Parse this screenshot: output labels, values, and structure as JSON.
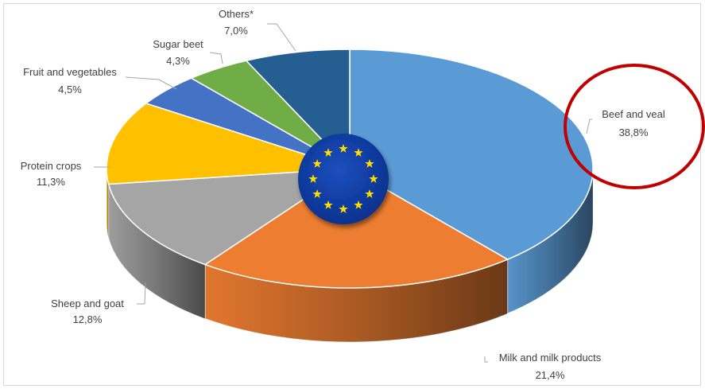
{
  "chart_data": {
    "type": "pie",
    "style": "3d",
    "center_emblem": "eu-flag",
    "highlight": {
      "slice": "Beef and veal",
      "shape": "ellipse",
      "color": "#C00000"
    },
    "slices": [
      {
        "label": "Beef and veal",
        "value": 38.8,
        "value_label": "38,8%",
        "color": "#5B9BD5"
      },
      {
        "label": "Milk and milk products",
        "value": 21.4,
        "value_label": "21,4%",
        "color": "#ED7D31"
      },
      {
        "label": "Sheep and goat",
        "value": 12.8,
        "value_label": "12,8%",
        "color": "#A5A5A5"
      },
      {
        "label": "Protein crops",
        "value": 11.3,
        "value_label": "11,3%",
        "color": "#FFC000"
      },
      {
        "label": "Fruit and vegetables",
        "value": 4.5,
        "value_label": "4,5%",
        "color": "#4472C4"
      },
      {
        "label": "Sugar beet",
        "value": 4.3,
        "value_label": "4,3%",
        "color": "#70AD47"
      },
      {
        "label": "Others*",
        "value": 7.0,
        "value_label": "7,0%",
        "color": "#255E91"
      }
    ]
  }
}
